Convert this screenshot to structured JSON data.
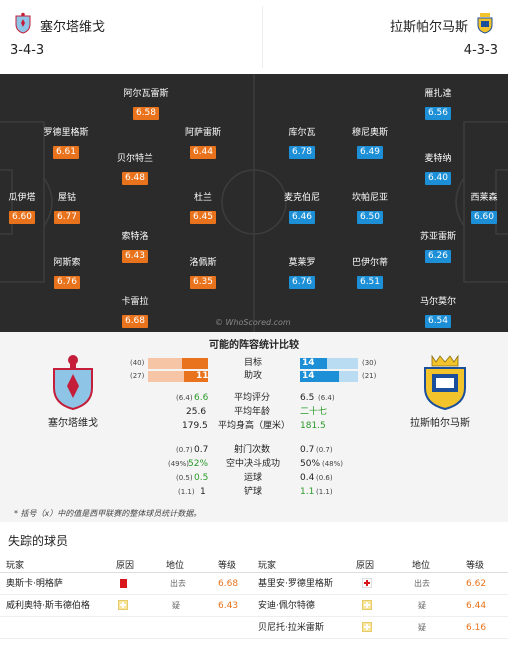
{
  "header": {
    "home_team": "塞尔塔维戈",
    "away_team": "拉斯帕尔马斯",
    "home_formation": "3-4-3",
    "away_formation": "4-3-3"
  },
  "pitch": {
    "watermark": "© WhoScored.com",
    "home_players": [
      {
        "name": "阿尔瓦雷斯",
        "rating": "6.58"
      },
      {
        "name": "罗德里格斯",
        "rating": "6.61"
      },
      {
        "name": "阿萨雷斯",
        "rating": "6.44"
      },
      {
        "name": "贝尔特兰",
        "rating": "6.48"
      },
      {
        "name": "瓜伊塔",
        "rating": "6.60"
      },
      {
        "name": "屋钴",
        "rating": "6.77"
      },
      {
        "name": "杜兰",
        "rating": "6.45"
      },
      {
        "name": "索特洛",
        "rating": "6.43"
      },
      {
        "name": "阿斯索",
        "rating": "6.76"
      },
      {
        "name": "洛佩斯",
        "rating": "6.35"
      },
      {
        "name": "卡雷拉",
        "rating": "6.68"
      }
    ],
    "away_players": [
      {
        "name": "雁扎達",
        "rating": "6.56"
      },
      {
        "name": "库尔瓦",
        "rating": "6.78"
      },
      {
        "name": "穆尼奥斯",
        "rating": "6.49"
      },
      {
        "name": "麦特纳",
        "rating": "6.40"
      },
      {
        "name": "麦克伯尼",
        "rating": "6.46"
      },
      {
        "name": "坎帕尼亚",
        "rating": "6.50"
      },
      {
        "name": "西莱森",
        "rating": "6.60"
      },
      {
        "name": "苏亚雷斯",
        "rating": "6.26"
      },
      {
        "name": "莫莱罗",
        "rating": "6.76"
      },
      {
        "name": "巴伊尔蒂",
        "rating": "6.51"
      },
      {
        "name": "马尔莫尔",
        "rating": "6.54"
      }
    ]
  },
  "compare": {
    "title": "可能的阵容统计比较",
    "home_team": "塞尔塔维戈",
    "away_team": "拉斯帕尔马斯",
    "bars": [
      {
        "label": "目标",
        "home_prev": "(40)",
        "home": "17",
        "away": "14",
        "away_prev": "(30)",
        "home_frac": 0.425,
        "away_frac": 0.467
      },
      {
        "label": "助攻",
        "home_prev": "(27)",
        "home": "11",
        "away": "14",
        "away_prev": "(21)",
        "home_frac": 0.407,
        "away_frac": 0.667
      }
    ],
    "stats": [
      {
        "label": "平均评分",
        "home_prev": "(6.4)",
        "home": "6.6",
        "away": "6.5",
        "away_prev": "(6.4)",
        "home_green": true,
        "away_green": false
      },
      {
        "label": "平均年龄",
        "home_prev": "",
        "home": "25.6",
        "away": "二十七",
        "away_prev": "",
        "home_green": false,
        "away_green": true
      },
      {
        "label": "平均身高（厘米）",
        "home_prev": "",
        "home": "179.5",
        "away": "181.5",
        "away_prev": "",
        "home_green": false,
        "away_green": true
      },
      {
        "label": "射门次数",
        "home_prev": "(0.7)",
        "home": "0.7",
        "away": "0.7",
        "away_prev": "(0.7)",
        "home_green": false,
        "away_green": false
      },
      {
        "label": "空中决斗成功",
        "home_prev": "(49%)",
        "home": "52%",
        "away": "50%",
        "away_prev": "(48%)",
        "home_green": true,
        "away_green": false
      },
      {
        "label": "运球",
        "home_prev": "(0.5)",
        "home": "0.5",
        "away": "0.4",
        "away_prev": "(0.6)",
        "home_green": true,
        "away_green": false
      },
      {
        "label": "铲球",
        "home_prev": "(1.1)",
        "home": "1",
        "away": "1.1",
        "away_prev": "(1.1)",
        "home_green": false,
        "away_green": true
      }
    ],
    "footnote": "* 括号（x）中的值是西甲联赛的整体球员统计数据。"
  },
  "missing": {
    "title": "失踪的球员",
    "headers": {
      "player": "玩家",
      "reason": "原因",
      "status": "地位",
      "rating": "等级"
    },
    "home": [
      {
        "player": "奥斯卡·明格萨",
        "reason_icon": "red-card-icon",
        "status": "出去",
        "rating": "6.68"
      },
      {
        "player": "威利奥特·斯韦德伯格",
        "reason_icon": "doubtful-icon",
        "status": "疑",
        "rating": "6.43"
      }
    ],
    "away": [
      {
        "player": "基里安·罗德里格斯",
        "reason_icon": "injury-icon",
        "status": "出去",
        "rating": "6.62"
      },
      {
        "player": "安迪·佩尔特德",
        "reason_icon": "doubtful-icon",
        "status": "疑",
        "rating": "6.44"
      },
      {
        "player": "贝尼托·拉米雷斯",
        "reason_icon": "doubtful-icon",
        "status": "疑",
        "rating": "6.16"
      }
    ]
  },
  "colors": {
    "home_accent": "#e8731c",
    "away_accent": "#1d8fd6",
    "positive": "#2a9a2a"
  }
}
